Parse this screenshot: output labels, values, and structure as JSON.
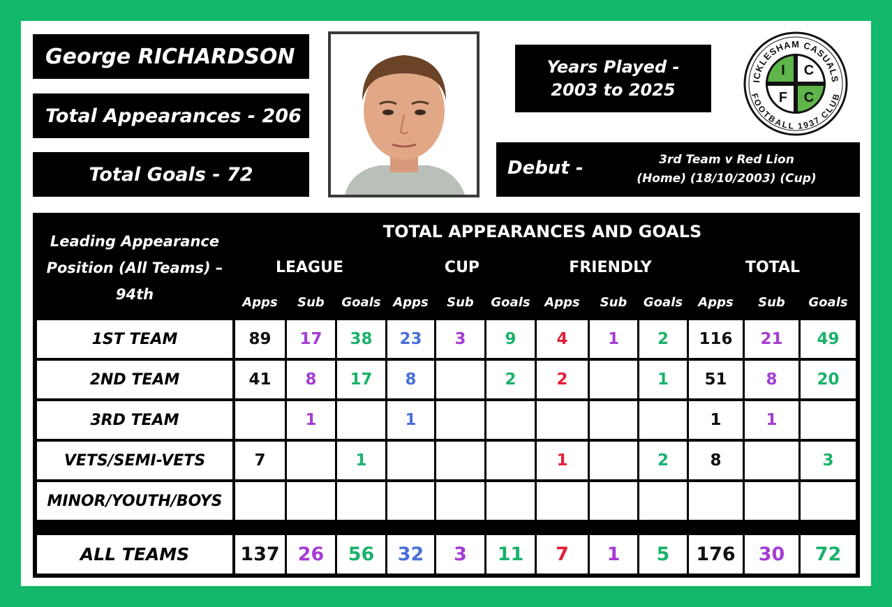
{
  "player": {
    "name": "George RICHARDSON",
    "total_appearances": "Total Appearances - 206",
    "total_goals": "Total Goals - 72",
    "years_line1": "Years Played -",
    "years_line2": "2003 to 2025",
    "debut_label": "Debut -",
    "debut_line1": "3rd Team v Red Lion",
    "debut_line2": "(Home) (18/10/2003) (Cup)"
  },
  "logo": {
    "top_text": "ICKLESHAM CASUALS",
    "bottom_text": "FOOTBALL 1937 CLUB",
    "letters": [
      "I",
      "C",
      "F",
      "C"
    ]
  },
  "table": {
    "lead_line1": "Leading Appearance",
    "lead_line2": "Position (All Teams) –",
    "lead_line3": "94th",
    "title": "TOTAL APPEARANCES AND GOALS",
    "groups": [
      "LEAGUE",
      "CUP",
      "FRIENDLY",
      "TOTAL"
    ],
    "subheaders": [
      "Apps",
      "Sub",
      "Goals",
      "Apps",
      "Sub",
      "Goals",
      "Apps",
      "Sub",
      "Goals",
      "Apps",
      "Sub",
      "Goals"
    ],
    "rows": [
      {
        "label": "1ST TEAM",
        "values": [
          "89",
          "17",
          "38",
          "23",
          "3",
          "9",
          "4",
          "1",
          "2",
          "116",
          "21",
          "49"
        ]
      },
      {
        "label": "2ND TEAM",
        "values": [
          "41",
          "8",
          "17",
          "8",
          "",
          "2",
          "2",
          "",
          "1",
          "51",
          "8",
          "20"
        ]
      },
      {
        "label": "3RD TEAM",
        "values": [
          "",
          "1",
          "",
          "1",
          "",
          "",
          "",
          "",
          "",
          "1",
          "1",
          ""
        ]
      },
      {
        "label": "VETS/SEMI-VETS",
        "values": [
          "7",
          "",
          "1",
          "",
          "",
          "",
          "1",
          "",
          "2",
          "8",
          "",
          "3"
        ]
      },
      {
        "label": "MINOR/YOUTH/BOYS",
        "values": [
          "",
          "",
          "",
          "",
          "",
          "",
          "",
          "",
          "",
          "",
          "",
          ""
        ]
      }
    ],
    "total_row": {
      "label": "ALL TEAMS",
      "values": [
        "137",
        "26",
        "56",
        "32",
        "3",
        "11",
        "7",
        "1",
        "5",
        "176",
        "30",
        "72"
      ]
    },
    "column_colors": [
      "#111111",
      "#a43ed4",
      "#1ab26b",
      "#4a6fd9",
      "#a43ed4",
      "#1ab26b",
      "#e2203a",
      "#a43ed4",
      "#1ab26b",
      "#111111",
      "#a43ed4",
      "#1ab26b"
    ]
  },
  "colors": {
    "border_green": "#14b86a",
    "logo_green": "#5fb54a"
  }
}
